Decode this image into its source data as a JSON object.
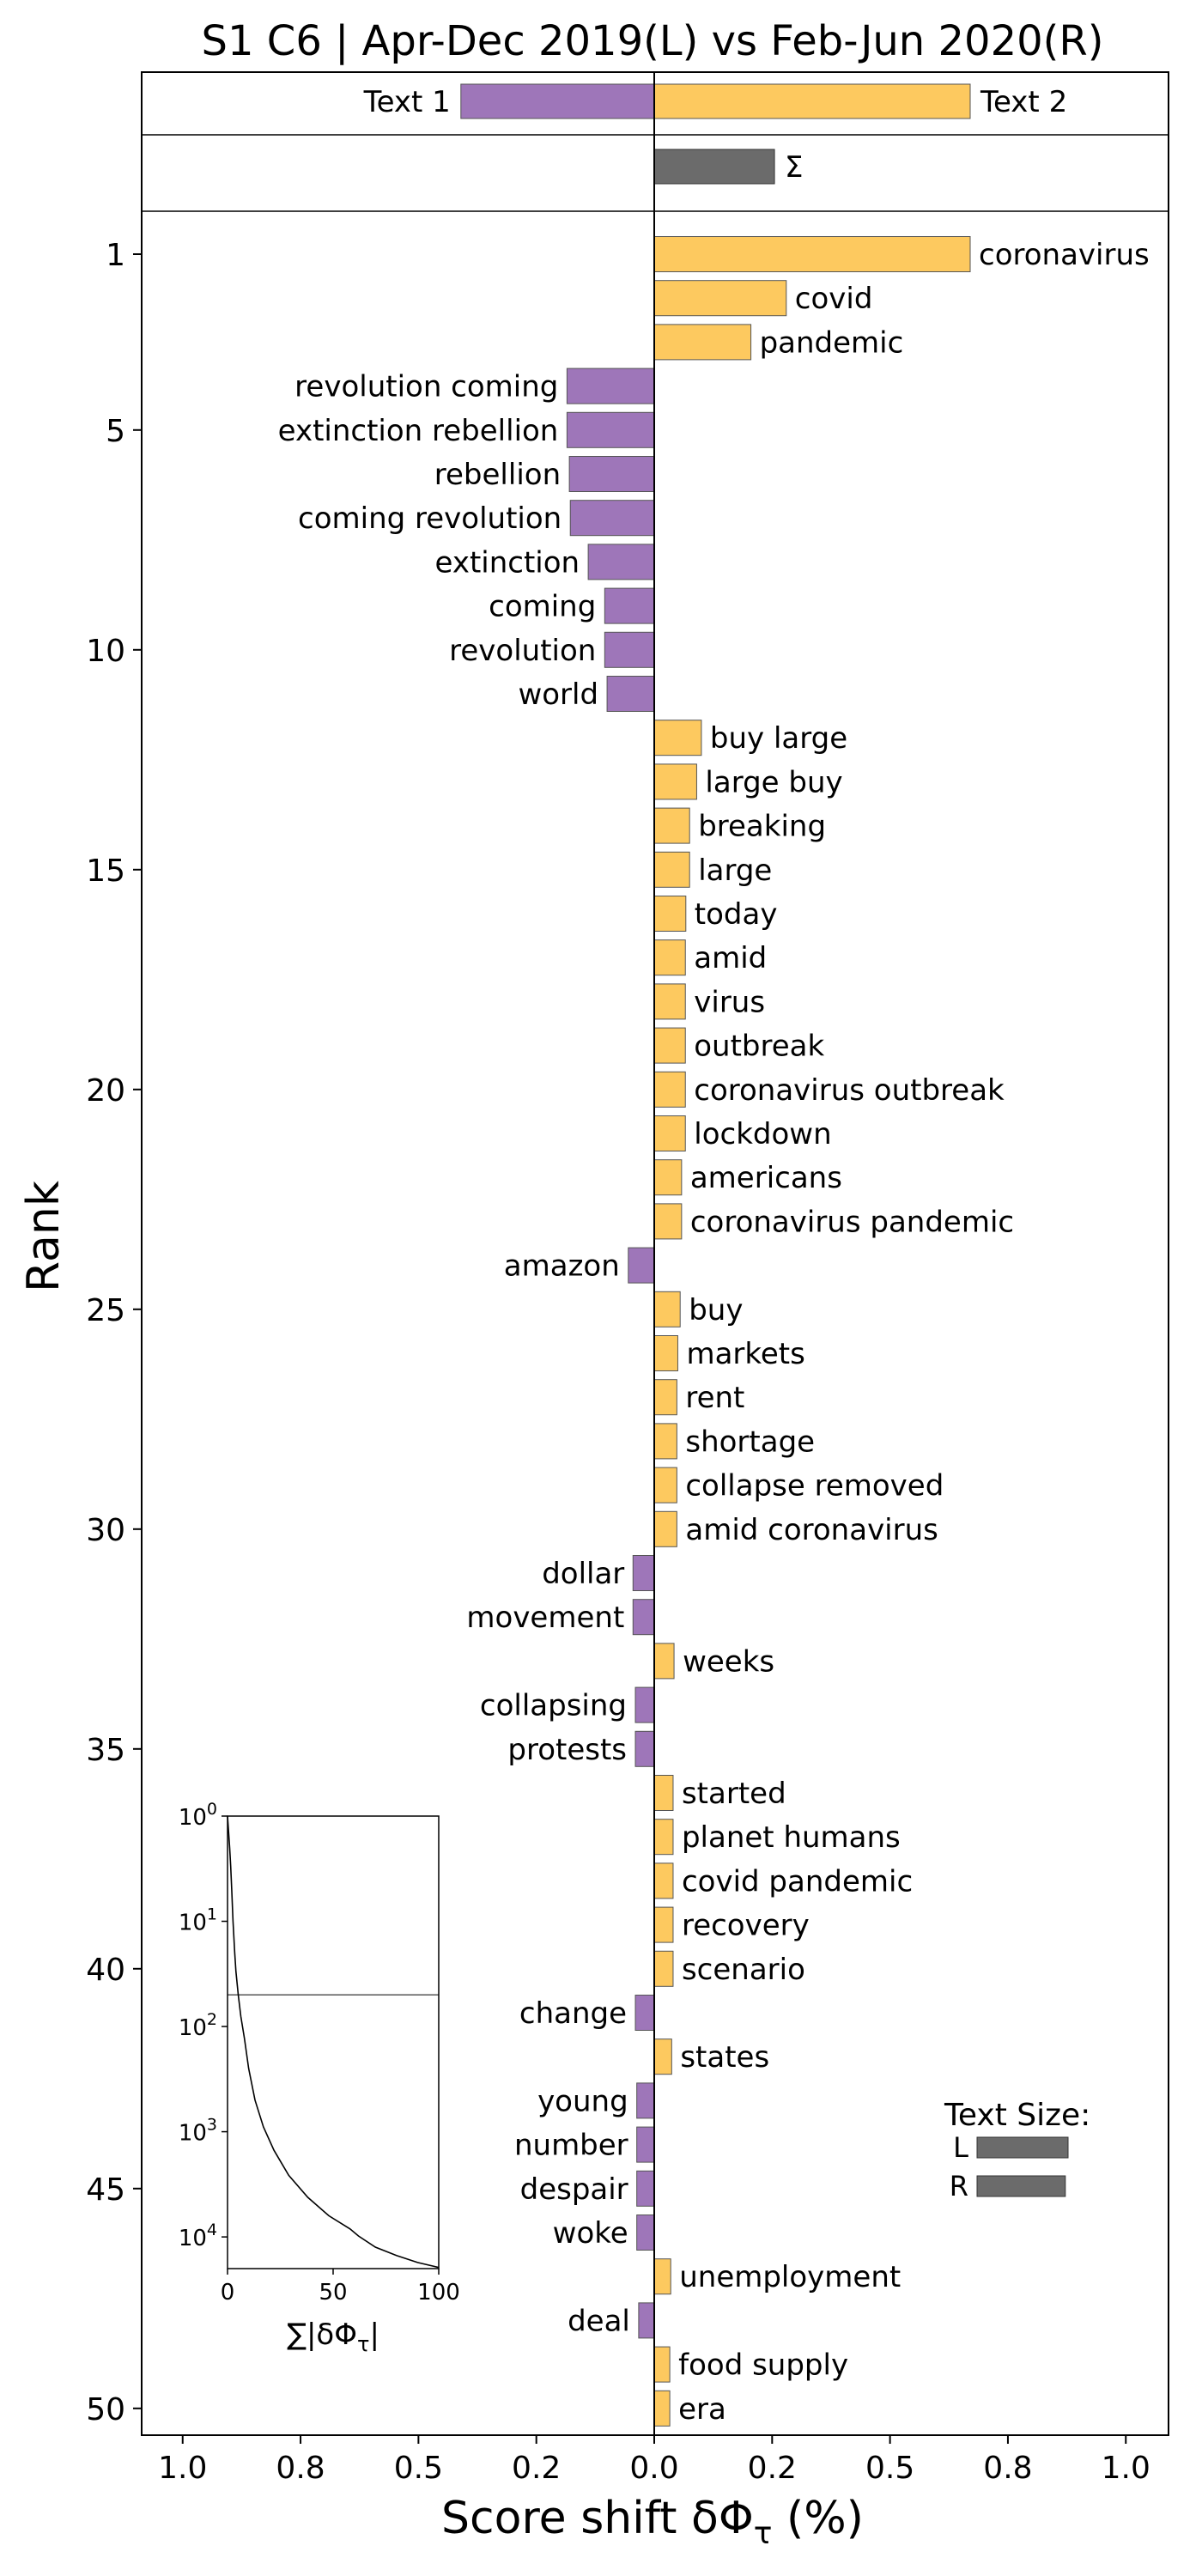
{
  "chart_data": {
    "type": "bar",
    "orientation": "horizontal",
    "title": "S1 C6 | Apr-Dec 2019(L) vs Feb-Jun 2020(R)",
    "xlabel": "Score shift δΦ",
    "xlabel_subscript": "τ",
    "xlabel_suffix": " (%)",
    "ylabel": "Rank",
    "xlim": [
      -1.08,
      1.08
    ],
    "x_ticks": [
      -1.0,
      -0.75,
      -0.5,
      -0.25,
      0.0,
      0.25,
      0.5,
      0.75,
      1.0
    ],
    "x_tick_labels": [
      "1.0",
      "0.8",
      "0.5",
      "0.2",
      "0.0",
      "0.2",
      "0.5",
      "0.8",
      "1.0"
    ],
    "y_ticks": [
      1,
      5,
      10,
      15,
      20,
      25,
      30,
      35,
      40,
      45,
      50
    ],
    "colors": {
      "left": "#9e76b9",
      "right": "#fdc95f",
      "sum": "#6b6b6b"
    },
    "summary": {
      "left_label": "Text 1",
      "left_value": -0.41,
      "right_label": "Text 2",
      "right_value": 0.67,
      "sum_label": "Σ",
      "sum_value": 0.255
    },
    "words": [
      {
        "rank": 1,
        "label": "coronavirus",
        "value": 0.67
      },
      {
        "rank": 2,
        "label": "covid",
        "value": 0.28
      },
      {
        "rank": 3,
        "label": "pandemic",
        "value": 0.205
      },
      {
        "rank": 4,
        "label": "revolution coming",
        "value": -0.185
      },
      {
        "rank": 5,
        "label": "extinction rebellion",
        "value": -0.185
      },
      {
        "rank": 6,
        "label": "rebellion",
        "value": -0.18
      },
      {
        "rank": 7,
        "label": "coming revolution",
        "value": -0.178
      },
      {
        "rank": 8,
        "label": "extinction",
        "value": -0.14
      },
      {
        "rank": 9,
        "label": "coming",
        "value": -0.105
      },
      {
        "rank": 10,
        "label": "revolution",
        "value": -0.105
      },
      {
        "rank": 11,
        "label": "world",
        "value": -0.1
      },
      {
        "rank": 12,
        "label": "buy large",
        "value": 0.1
      },
      {
        "rank": 13,
        "label": "large buy",
        "value": 0.09
      },
      {
        "rank": 14,
        "label": "breaking",
        "value": 0.075
      },
      {
        "rank": 15,
        "label": "large",
        "value": 0.075
      },
      {
        "rank": 16,
        "label": "today",
        "value": 0.067
      },
      {
        "rank": 17,
        "label": "amid",
        "value": 0.066
      },
      {
        "rank": 18,
        "label": "virus",
        "value": 0.066
      },
      {
        "rank": 19,
        "label": "outbreak",
        "value": 0.066
      },
      {
        "rank": 20,
        "label": "coronavirus outbreak",
        "value": 0.066
      },
      {
        "rank": 21,
        "label": "lockdown",
        "value": 0.066
      },
      {
        "rank": 22,
        "label": "americans",
        "value": 0.058
      },
      {
        "rank": 23,
        "label": "coronavirus pandemic",
        "value": 0.058
      },
      {
        "rank": 24,
        "label": "amazon",
        "value": -0.055
      },
      {
        "rank": 25,
        "label": "buy",
        "value": 0.055
      },
      {
        "rank": 26,
        "label": "markets",
        "value": 0.05
      },
      {
        "rank": 27,
        "label": "rent",
        "value": 0.048
      },
      {
        "rank": 28,
        "label": "shortage",
        "value": 0.048
      },
      {
        "rank": 29,
        "label": "collapse removed",
        "value": 0.048
      },
      {
        "rank": 30,
        "label": "amid coronavirus",
        "value": 0.048
      },
      {
        "rank": 31,
        "label": "dollar",
        "value": -0.045
      },
      {
        "rank": 32,
        "label": "movement",
        "value": -0.045
      },
      {
        "rank": 33,
        "label": "weeks",
        "value": 0.042
      },
      {
        "rank": 34,
        "label": "collapsing",
        "value": -0.04
      },
      {
        "rank": 35,
        "label": "protests",
        "value": -0.04
      },
      {
        "rank": 36,
        "label": "started",
        "value": 0.04
      },
      {
        "rank": 37,
        "label": "planet humans",
        "value": 0.04
      },
      {
        "rank": 38,
        "label": "covid pandemic",
        "value": 0.04
      },
      {
        "rank": 39,
        "label": "recovery",
        "value": 0.04
      },
      {
        "rank": 40,
        "label": "scenario",
        "value": 0.04
      },
      {
        "rank": 41,
        "label": "change",
        "value": -0.04
      },
      {
        "rank": 42,
        "label": "states",
        "value": 0.037
      },
      {
        "rank": 43,
        "label": "young",
        "value": -0.037
      },
      {
        "rank": 44,
        "label": "number",
        "value": -0.037
      },
      {
        "rank": 45,
        "label": "despair",
        "value": -0.037
      },
      {
        "rank": 46,
        "label": "woke",
        "value": -0.037
      },
      {
        "rank": 47,
        "label": "unemployment",
        "value": 0.035
      },
      {
        "rank": 48,
        "label": "deal",
        "value": -0.033
      },
      {
        "rank": 49,
        "label": "food supply",
        "value": 0.033
      },
      {
        "rank": 50,
        "label": "era",
        "value": 0.033
      }
    ],
    "text_size": {
      "title": "Text Size:",
      "bars": [
        {
          "label": "L",
          "value": 1.0
        },
        {
          "label": "R",
          "value": 0.97
        }
      ]
    },
    "inset": {
      "type": "line",
      "xlabel": "∑|δΦ",
      "xlabel_subscript": "τ",
      "xlabel_suffix": "|",
      "x_ticks": [
        0,
        50,
        100
      ],
      "xlim": [
        0,
        100
      ],
      "y_scale": "log",
      "y_ticks": [
        1,
        10,
        100,
        1000,
        10000
      ],
      "y_exponents": [
        "0",
        "1",
        "2",
        "3",
        "4"
      ],
      "ylim": [
        1,
        20000
      ],
      "reference_rank": 50,
      "curve": [
        {
          "x": 0.0,
          "rank": 1
        },
        {
          "x": 1.0,
          "rank": 2
        },
        {
          "x": 1.5,
          "rank": 3
        },
        {
          "x": 2.0,
          "rank": 5
        },
        {
          "x": 2.6,
          "rank": 10
        },
        {
          "x": 3.4,
          "rank": 20
        },
        {
          "x": 4.0,
          "rank": 30
        },
        {
          "x": 5.1,
          "rank": 50
        },
        {
          "x": 6.3,
          "rank": 80
        },
        {
          "x": 8.0,
          "rank": 130
        },
        {
          "x": 10.0,
          "rank": 250
        },
        {
          "x": 13.0,
          "rank": 500
        },
        {
          "x": 17.0,
          "rank": 900
        },
        {
          "x": 22.0,
          "rank": 1500
        },
        {
          "x": 29.0,
          "rank": 2600
        },
        {
          "x": 38.0,
          "rank": 4200
        },
        {
          "x": 48.0,
          "rank": 6300
        },
        {
          "x": 58.0,
          "rank": 8400
        },
        {
          "x": 62.0,
          "rank": 9800
        },
        {
          "x": 70.0,
          "rank": 12500
        },
        {
          "x": 80.0,
          "rank": 15000
        },
        {
          "x": 90.0,
          "rank": 17500
        },
        {
          "x": 100.0,
          "rank": 19500
        }
      ]
    }
  }
}
